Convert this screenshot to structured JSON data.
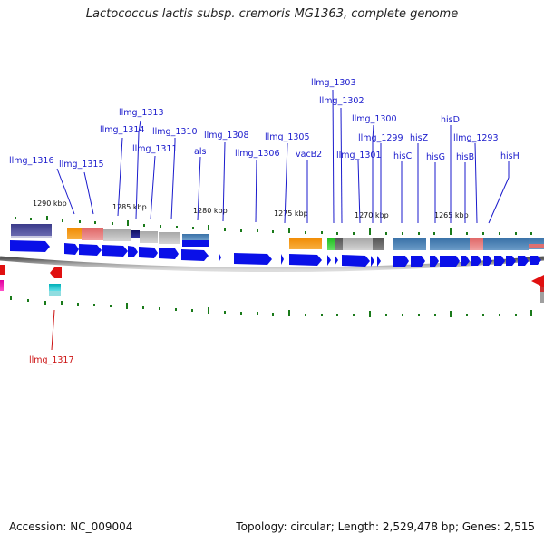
{
  "title": "Lactococcus lactis subsp. cremoris MG1363, complete genome",
  "footer": {
    "accession": "Accession: NC_009004",
    "topology": "Topology: circular; Length: 2,529,478 bp; Genes: 2,515"
  },
  "ticks": [
    "1290 kbp",
    "1285 kbp",
    "1280 kbp",
    "1275 kbp",
    "1270 kbp",
    "1265 kbp"
  ],
  "genes_top": [
    "llmg_1316",
    "llmg_1315",
    "llmg_1314",
    "llmg_1313",
    "llmg_1311",
    "llmg_1310",
    "als",
    "llmg_1308",
    "llmg_1306",
    "llmg_1305",
    "vacB2",
    "llmg_1303",
    "llmg_1302",
    "llmg_1301",
    "llmg_1300",
    "llmg_1299",
    "hisC",
    "hisZ",
    "hisG",
    "hisD",
    "hisB",
    "llmg_1293",
    "hisH"
  ],
  "genes_bottom": [
    "llmg_1317"
  ],
  "colors": {
    "cds": "#0a10e8",
    "backbone": "#8a8a8a",
    "label": "#1a1acc",
    "label_reverse": "#cc1111",
    "tick_mark": "#1a7a1a"
  }
}
